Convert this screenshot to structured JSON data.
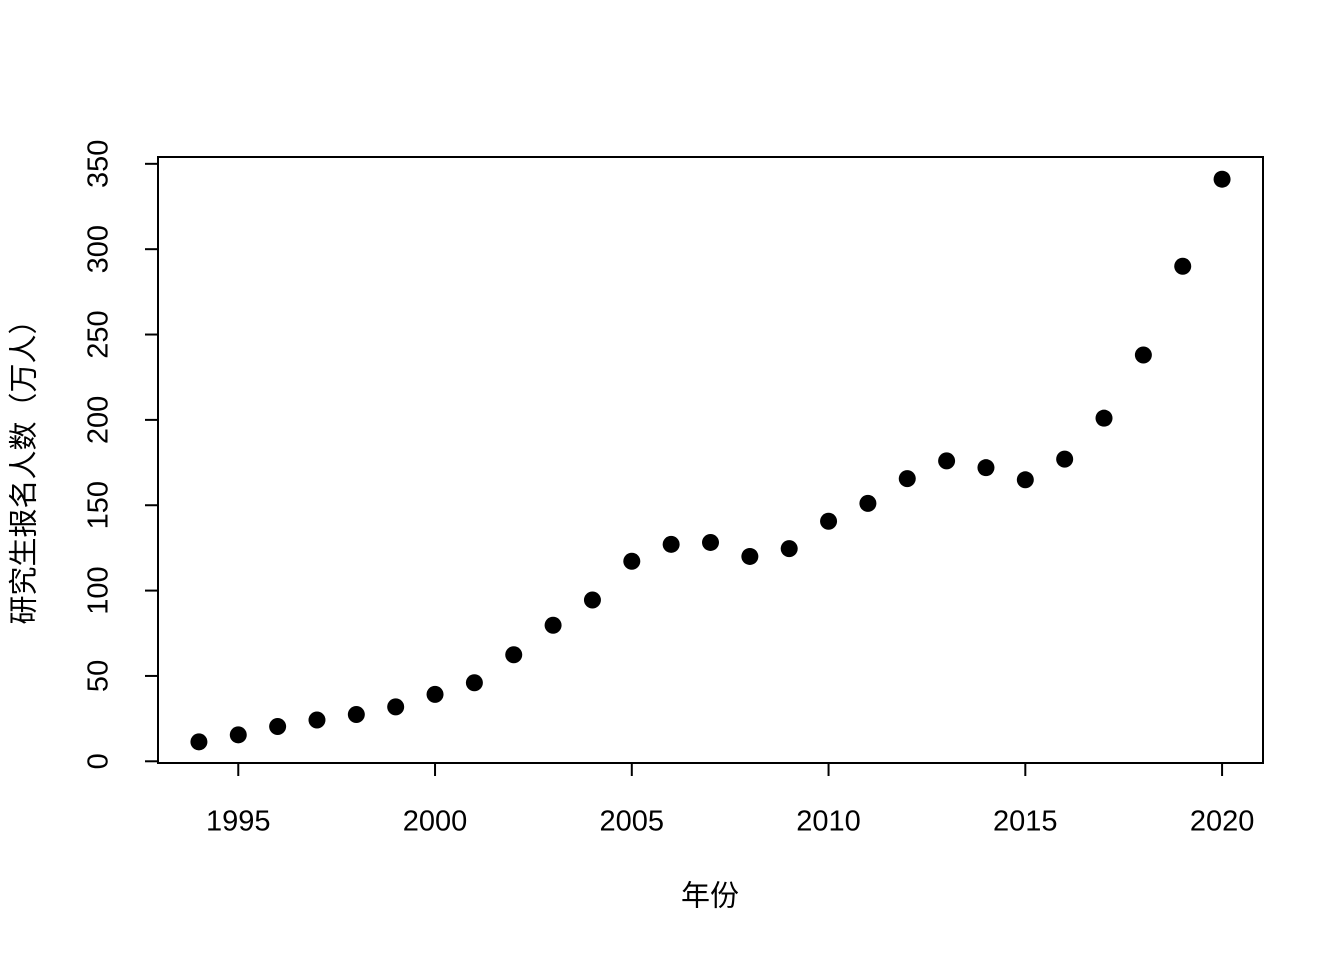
{
  "chart_data": {
    "type": "scatter",
    "x_label": "年份",
    "y_label": "研究生报名人数（万人）",
    "x": [
      1994,
      1995,
      1996,
      1997,
      1998,
      1999,
      2000,
      2001,
      2002,
      2003,
      2004,
      2005,
      2006,
      2007,
      2008,
      2009,
      2010,
      2011,
      2012,
      2013,
      2014,
      2015,
      2016,
      2017,
      2018,
      2019,
      2020
    ],
    "values": [
      11.4,
      15.5,
      20.4,
      24.2,
      27.4,
      31.9,
      39.2,
      46.0,
      62.4,
      79.7,
      94.5,
      117.2,
      127.1,
      128.2,
      120.0,
      124.6,
      140.6,
      151.1,
      165.6,
      176,
      172,
      164.9,
      177,
      201,
      238,
      290,
      341
    ],
    "color": "#000000",
    "xlim": [
      1992.96,
      2021.04
    ],
    "xticks": [
      1995,
      2000,
      2005,
      2010,
      2015,
      2020
    ],
    "ylim": [
      -1,
      354
    ],
    "yticks": [
      0,
      50,
      100,
      150,
      200,
      250,
      300,
      350
    ],
    "grid": false
  }
}
